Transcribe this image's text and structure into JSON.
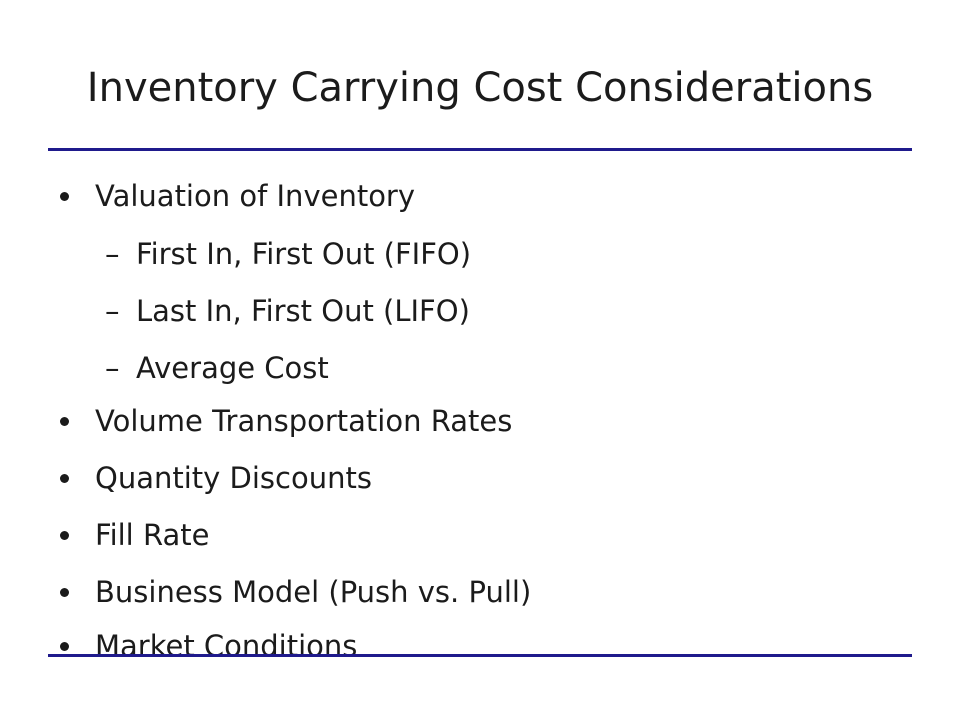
{
  "slide": {
    "title": "Inventory Carrying Cost Considerations",
    "rule_color": "#1f1a8c",
    "bullet_symbol": "•",
    "sub_bullet_symbol": "–",
    "items": [
      {
        "level": 1,
        "text": "Valuation of Inventory"
      },
      {
        "level": 2,
        "text": "First In, First Out (FIFO)"
      },
      {
        "level": 2,
        "text": "Last In, First Out (LIFO)"
      },
      {
        "level": 2,
        "text": "Average Cost"
      },
      {
        "level": 1,
        "text": "Volume Transportation Rates"
      },
      {
        "level": 1,
        "text": "Quantity Discounts"
      },
      {
        "level": 1,
        "text": "Fill Rate"
      },
      {
        "level": 1,
        "text": "Business Model (Push vs. Pull)"
      },
      {
        "level": 1,
        "text": "Market Conditions"
      }
    ]
  }
}
